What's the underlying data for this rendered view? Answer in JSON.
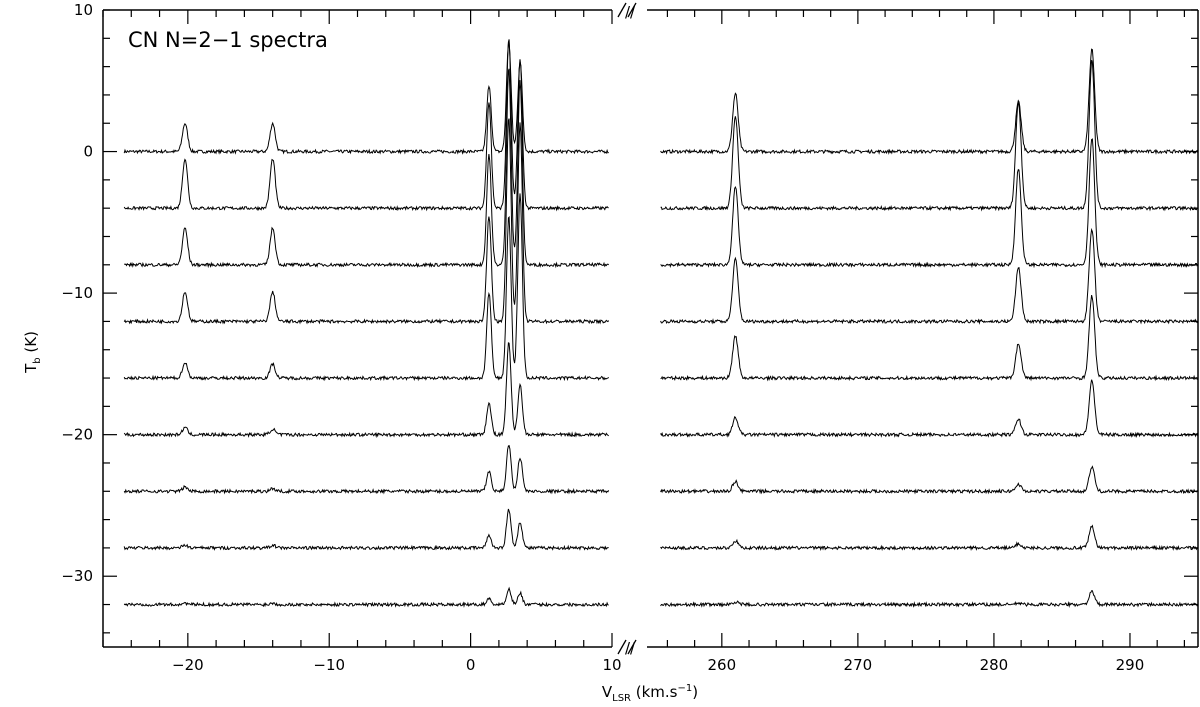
{
  "chart_data": {
    "type": "line",
    "title": "CN N=2−1 spectra",
    "ylabel_main": "T",
    "ylabel_sub": "b",
    "ylabel_unit": " (K)",
    "xlabel_main": "V",
    "xlabel_sub": "LSR",
    "xlabel_unit": " (km.s",
    "xlabel_exp": "−1",
    "xlabel_close": ")",
    "break_marker": "//",
    "ylim": [
      -35,
      10
    ],
    "yticks": [
      0,
      -10,
      -20,
      -30
    ],
    "y_minor_step": 2,
    "panels": [
      {
        "name": "left",
        "xlim": [
          -26,
          10
        ],
        "xticks": [
          -20,
          -10,
          0,
          10
        ],
        "x_minor_step": 2,
        "trace_x_range": [
          -24.5,
          9.8
        ]
      },
      {
        "name": "right",
        "xlim": [
          254.5,
          295
        ],
        "xticks": [
          260,
          270,
          280,
          290
        ],
        "x_minor_step": 2,
        "trace_x_range": [
          255.5,
          295
        ]
      }
    ],
    "line_positions": [
      -20.2,
      -14.0,
      1.3,
      2.7,
      3.5,
      261.0,
      281.8,
      287.2
    ],
    "series": [
      {
        "offset": 0,
        "peaks": [
          2.0,
          2.0,
          4.6,
          7.8,
          6.3,
          4.1,
          3.5,
          7.2
        ]
      },
      {
        "offset": -4,
        "peaks": [
          3.5,
          3.5,
          7.5,
          12.0,
          10.5,
          6.5,
          7.5,
          10.5
        ]
      },
      {
        "offset": -8,
        "peaks": [
          2.6,
          2.6,
          7.8,
          14.0,
          13.0,
          5.5,
          6.8,
          9.0
        ]
      },
      {
        "offset": -12,
        "peaks": [
          2.1,
          2.1,
          7.5,
          14.5,
          14.0,
          4.4,
          3.8,
          6.5
        ]
      },
      {
        "offset": -16,
        "peaks": [
          1.1,
          1.0,
          6.0,
          11.5,
          13.0,
          3.0,
          2.4,
          5.8
        ]
      },
      {
        "offset": -20,
        "peaks": [
          0.5,
          0.4,
          2.2,
          6.5,
          3.5,
          1.2,
          1.1,
          3.8
        ]
      },
      {
        "offset": -24,
        "peaks": [
          0.3,
          0.2,
          1.4,
          3.3,
          2.4,
          0.7,
          0.5,
          1.7
        ]
      },
      {
        "offset": -28,
        "peaks": [
          0.2,
          0.2,
          0.9,
          2.7,
          1.8,
          0.5,
          0.3,
          1.5
        ]
      },
      {
        "offset": -32,
        "peaks": [
          0.1,
          0.1,
          0.4,
          1.1,
          0.8,
          0.2,
          0.1,
          0.9
        ]
      }
    ]
  }
}
